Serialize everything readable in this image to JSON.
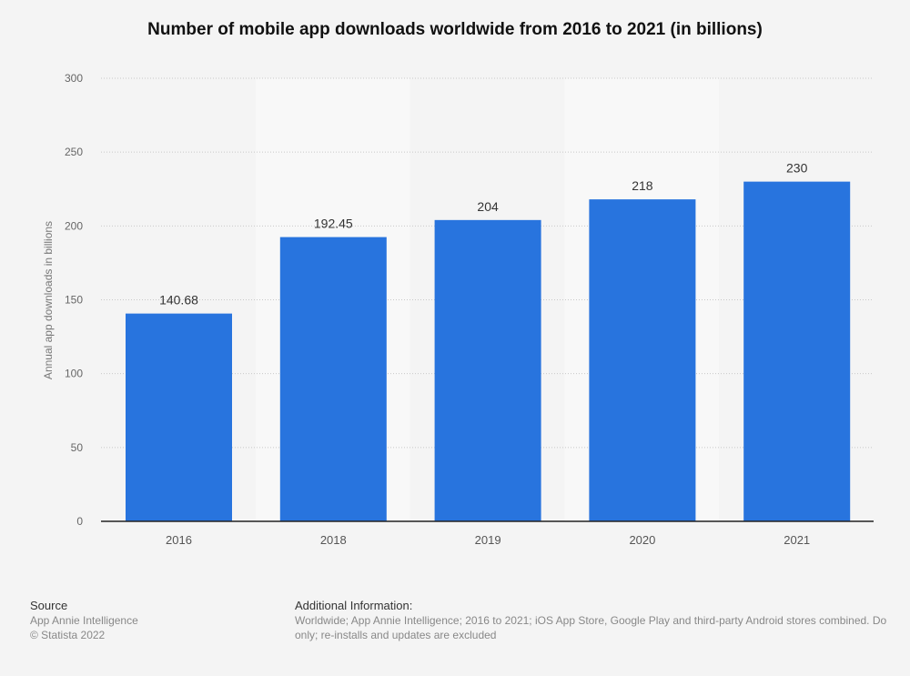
{
  "chart_data": {
    "type": "bar",
    "title": "Number of mobile app downloads worldwide from 2016 to 2021 (in billions)",
    "categories": [
      "2016",
      "2018",
      "2019",
      "2020",
      "2021"
    ],
    "values": [
      140.68,
      192.45,
      204,
      218,
      230
    ],
    "data_labels": [
      "140.68",
      "192.45",
      "204",
      "218",
      "230"
    ],
    "xlabel": "",
    "ylabel": "Annual app downloads in billions",
    "ylim": [
      0,
      300
    ],
    "yticks": [
      0,
      50,
      100,
      150,
      200,
      250,
      300
    ],
    "grid": true,
    "bar_color": "#2874de"
  },
  "footer": {
    "source_heading": "Source",
    "source": "App Annie Intelligence",
    "copyright": "© Statista 2022",
    "info_heading": "Additional Information:",
    "info_line1": "Worldwide; App Annie Intelligence; 2016 to 2021; iOS App Store, Google Play and third-party Android stores combined. Do",
    "info_line2": "only; re-installs and updates are excluded"
  }
}
